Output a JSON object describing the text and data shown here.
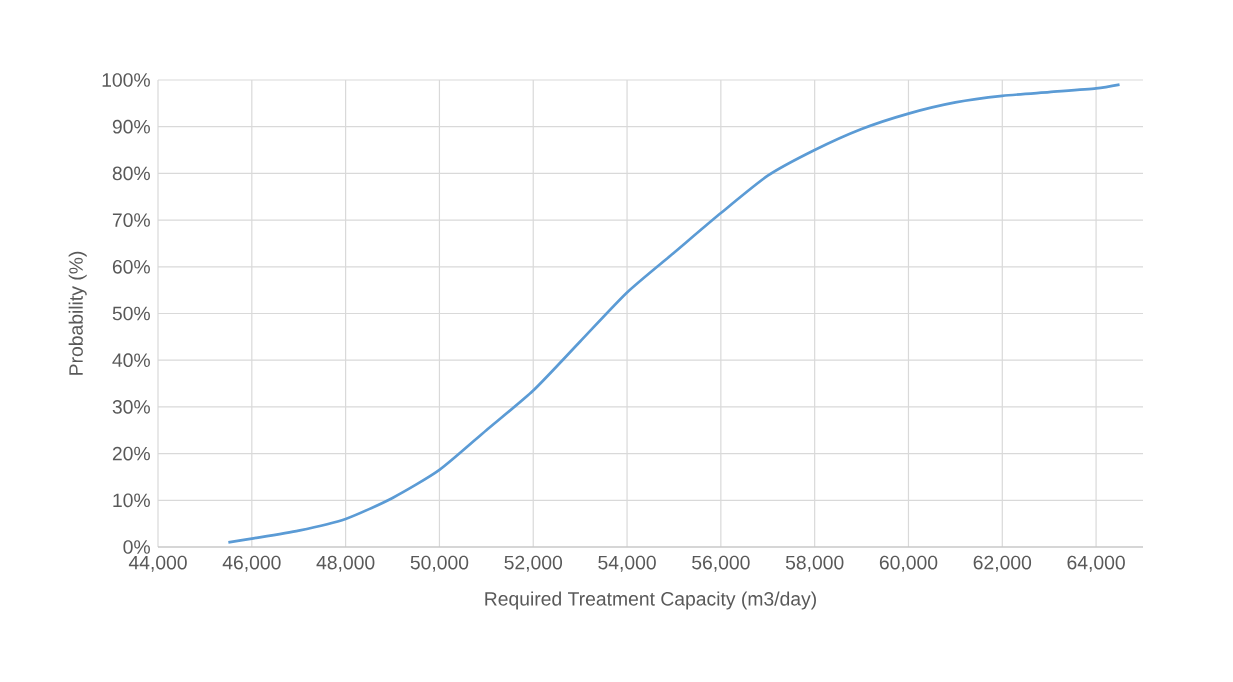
{
  "chart_data": {
    "type": "line",
    "xlabel": "Required Treatment Capacity (m3/day)",
    "ylabel": "Probability (%)",
    "x": [
      45500,
      46000,
      47000,
      48000,
      49000,
      50000,
      51000,
      52000,
      53000,
      54000,
      55000,
      56000,
      57000,
      58000,
      59000,
      60000,
      61000,
      62000,
      63000,
      64000,
      64500
    ],
    "values": [
      1,
      1.8,
      3.5,
      6,
      10.5,
      16.5,
      25,
      33.5,
      44,
      54.5,
      63,
      71.5,
      79.5,
      85,
      89.5,
      92.8,
      95.2,
      96.6,
      97.4,
      98.2,
      99
    ],
    "color": "#5b9bd5",
    "xlim": [
      44000,
      65000
    ],
    "ylim": [
      0,
      100
    ],
    "xticks": [
      {
        "value": 44000,
        "label": "44,000"
      },
      {
        "value": 46000,
        "label": "46,000"
      },
      {
        "value": 48000,
        "label": "48,000"
      },
      {
        "value": 50000,
        "label": "50,000"
      },
      {
        "value": 52000,
        "label": "52,000"
      },
      {
        "value": 54000,
        "label": "54,000"
      },
      {
        "value": 56000,
        "label": "56,000"
      },
      {
        "value": 58000,
        "label": "58,000"
      },
      {
        "value": 60000,
        "label": "60,000"
      },
      {
        "value": 62000,
        "label": "62,000"
      },
      {
        "value": 64000,
        "label": "64,000"
      }
    ],
    "yticks": [
      {
        "value": 0,
        "label": "0%"
      },
      {
        "value": 10,
        "label": "10%"
      },
      {
        "value": 20,
        "label": "20%"
      },
      {
        "value": 30,
        "label": "30%"
      },
      {
        "value": 40,
        "label": "40%"
      },
      {
        "value": 50,
        "label": "50%"
      },
      {
        "value": 60,
        "label": "60%"
      },
      {
        "value": 70,
        "label": "70%"
      },
      {
        "value": 80,
        "label": "80%"
      },
      {
        "value": 90,
        "label": "90%"
      },
      {
        "value": 100,
        "label": "100%"
      }
    ],
    "grid": true
  }
}
